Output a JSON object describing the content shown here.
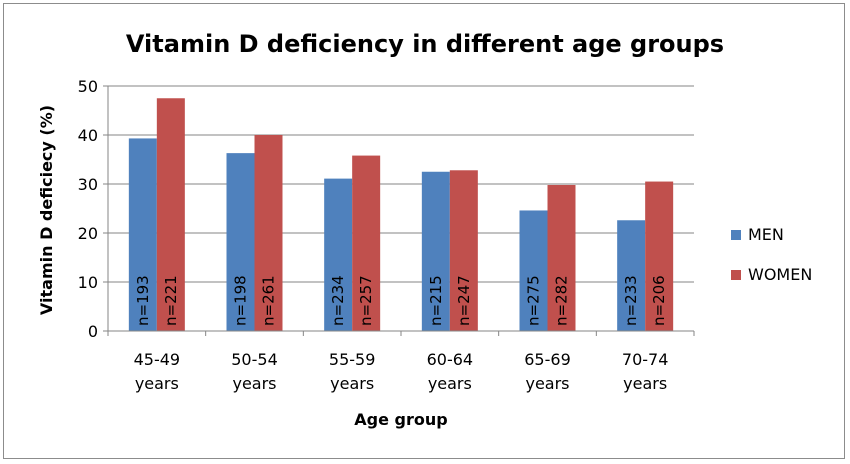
{
  "chart_data": {
    "type": "bar",
    "title": "Vitamin D deficiency in different age groups",
    "xlabel": "Age group",
    "ylabel": "Vitamin D deficiecy (%)",
    "ylim": [
      0,
      50
    ],
    "yticks": [
      "0",
      "10",
      "20",
      "30",
      "40",
      "50"
    ],
    "grid": true,
    "legend_position": "right",
    "categories": [
      [
        "45-49",
        "years"
      ],
      [
        "50-54",
        "years"
      ],
      [
        "55-59",
        "years"
      ],
      [
        "60-64",
        "years"
      ],
      [
        "65-69",
        "years"
      ],
      [
        "70-74",
        "years"
      ]
    ],
    "series": [
      {
        "name": "MEN",
        "color": "#4f81bd",
        "values": [
          39.3,
          36.3,
          31.1,
          32.5,
          24.6,
          22.6
        ],
        "labels": [
          "n=193",
          "n=198",
          "n=234",
          "n=215",
          "n=275",
          "n=233"
        ]
      },
      {
        "name": "WOMEN",
        "color": "#c0504d",
        "values": [
          47.5,
          40.0,
          35.8,
          32.8,
          29.8,
          30.5
        ],
        "labels": [
          "n=221",
          "n=261",
          "n=257",
          "n=247",
          "n=282",
          "n=206"
        ]
      }
    ]
  }
}
